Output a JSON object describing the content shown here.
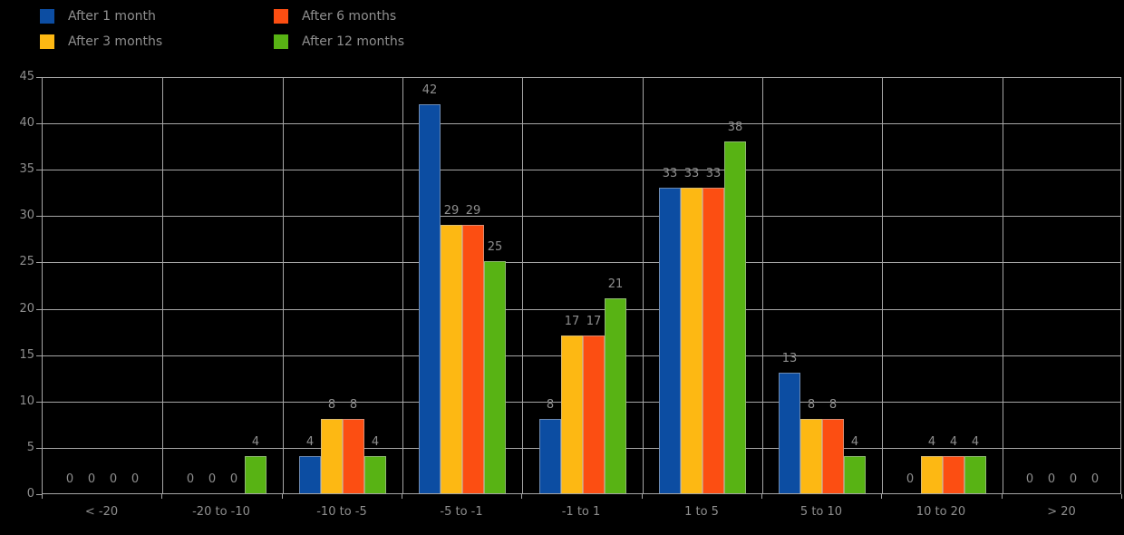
{
  "background": "#000000",
  "legend": {
    "items": [
      {
        "label": "After 1 month",
        "color": "#0c4da2"
      },
      {
        "label": "After 3 months",
        "color": "#fdb813"
      },
      {
        "label": "After 6 months",
        "color": "#fc4e12"
      },
      {
        "label": "After 12 months",
        "color": "#58b314"
      }
    ]
  },
  "chart_data": {
    "type": "bar",
    "title": "",
    "categories": [
      "< -20",
      "-20 to -10",
      "-10 to -5",
      "-5 to -1",
      "-1 to 1",
      "1 to 5",
      "5 to 10",
      "10 to 20",
      "> 20"
    ],
    "series": [
      {
        "name": "After 1 month",
        "color": "#0c4da2",
        "values": [
          0,
          0,
          4,
          42,
          8,
          33,
          13,
          0,
          0
        ]
      },
      {
        "name": "After 3 months",
        "color": "#fdb813",
        "values": [
          0,
          0,
          8,
          29,
          17,
          33,
          8,
          4,
          0
        ]
      },
      {
        "name": "After 6 months",
        "color": "#fc4e12",
        "values": [
          0,
          0,
          8,
          29,
          17,
          33,
          8,
          4,
          0
        ]
      },
      {
        "name": "After 12 months",
        "color": "#58b314",
        "values": [
          0,
          4,
          4,
          25,
          21,
          38,
          4,
          4,
          0
        ]
      }
    ],
    "ylim": [
      0,
      45
    ],
    "yticks": [
      0,
      5,
      10,
      15,
      20,
      25,
      30,
      35,
      40,
      45
    ],
    "xlabel": "",
    "ylabel": "",
    "grid": true,
    "data_labels": true,
    "legend_position": "top-left",
    "colors": {
      "grid": "#a6a6a6",
      "text": "#8f8f8f",
      "bar_edge": "#bebebe"
    }
  }
}
